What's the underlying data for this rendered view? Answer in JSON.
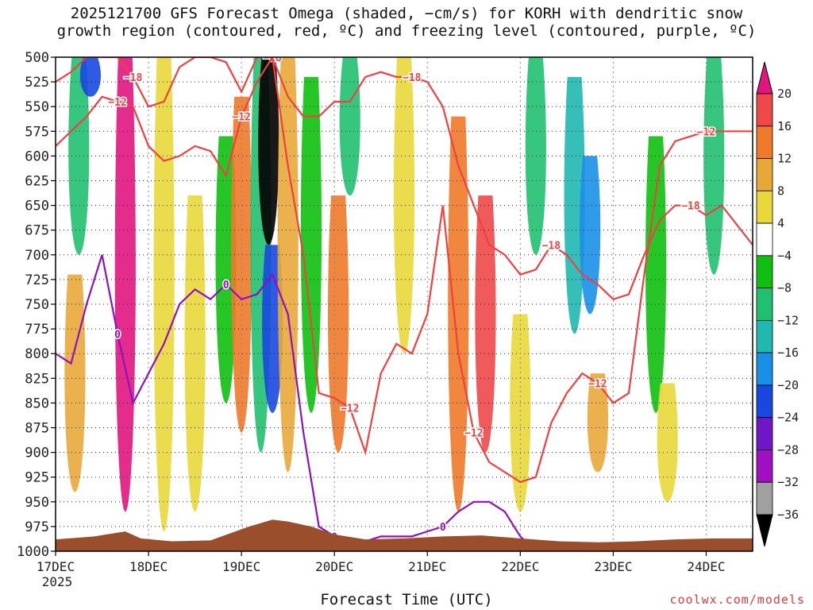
{
  "title_line1": "2025121700 GFS Forecast Omega (shaded, −cm/s) for KORH with dendritic snow",
  "title_line2": "growth region (contoured, red, ºC) and freezing level (contoured, purple, ºC)",
  "credit": "coolwx.com/models",
  "chart_data": {
    "type": "heatmap",
    "title": "2025121700 GFS Forecast Omega (shaded, −cm/s) for KORH with dendritic snow growth region (contoured, red, ºC) and freezing level (contoured, purple, ºC)",
    "xlabel": "Forecast Time (UTC)",
    "ylabel": "Pressure (hPa)",
    "x_ticks": [
      "17DEC",
      "18DEC",
      "19DEC",
      "20DEC",
      "21DEC",
      "22DEC",
      "23DEC",
      "24DEC"
    ],
    "x_year_label": "2025",
    "xlim_hours": [
      0,
      180
    ],
    "y_ticks": [
      500,
      525,
      550,
      575,
      600,
      625,
      650,
      675,
      700,
      725,
      750,
      775,
      800,
      825,
      850,
      875,
      900,
      925,
      950,
      975,
      1000
    ],
    "ylim": [
      500,
      1000
    ],
    "colorbar": {
      "ticks": [
        "20",
        "16",
        "12",
        "8",
        "4",
        "−4",
        "−8",
        "−12",
        "−16",
        "−20",
        "−24",
        "−28",
        "−32",
        "−36"
      ],
      "bins": [
        {
          "range": ">20",
          "color": "#e0157e"
        },
        {
          "range": "16 to 20",
          "color": "#f04848"
        },
        {
          "range": "12 to 16",
          "color": "#f07a2a"
        },
        {
          "range": "8 to 12",
          "color": "#e8a838"
        },
        {
          "range": "4 to 8",
          "color": "#e8d838"
        },
        {
          "range": "-4 to 4",
          "color": "#ffffff"
        },
        {
          "range": "-8 to -4",
          "color": "#10c010"
        },
        {
          "range": "-12 to -8",
          "color": "#20c070"
        },
        {
          "range": "-16 to -12",
          "color": "#20b8b0"
        },
        {
          "range": "-20 to -16",
          "color": "#1890e8"
        },
        {
          "range": "-24 to -20",
          "color": "#1848e0"
        },
        {
          "range": "-28 to -24",
          "color": "#7018c8"
        },
        {
          "range": "-32 to -28",
          "color": "#a010c0"
        },
        {
          "range": "-36 to -32",
          "color": "#a0a0a0"
        },
        {
          "range": "<-36",
          "color": "#000000"
        }
      ]
    },
    "omega_features": [
      {
        "hour": 6,
        "p_top": 500,
        "p_bot": 700,
        "bin": "-12 to -8"
      },
      {
        "hour": 9,
        "p_top": 500,
        "p_bot": 540,
        "bin": "-24 to -20"
      },
      {
        "hour": 5,
        "p_top": 720,
        "p_bot": 940,
        "bin": "8 to 12"
      },
      {
        "hour": 18,
        "p_top": 500,
        "p_bot": 960,
        "bin": ">20"
      },
      {
        "hour": 28,
        "p_top": 500,
        "p_bot": 980,
        "bin": "4 to 8"
      },
      {
        "hour": 36,
        "p_top": 640,
        "p_bot": 960,
        "bin": "4 to 8"
      },
      {
        "hour": 44,
        "p_top": 580,
        "p_bot": 850,
        "bin": "-8 to -4"
      },
      {
        "hour": 48,
        "p_top": 540,
        "p_bot": 880,
        "bin": "12 to 16"
      },
      {
        "hour": 53,
        "p_top": 500,
        "p_bot": 900,
        "bin": "-12 to -8"
      },
      {
        "hour": 55,
        "p_top": 500,
        "p_bot": 690,
        "bin": "<-36"
      },
      {
        "hour": 56,
        "p_top": 690,
        "p_bot": 860,
        "bin": "-24 to -20"
      },
      {
        "hour": 60,
        "p_top": 500,
        "p_bot": 920,
        "bin": "8 to 12"
      },
      {
        "hour": 66,
        "p_top": 520,
        "p_bot": 860,
        "bin": "-8 to -4"
      },
      {
        "hour": 73,
        "p_top": 640,
        "p_bot": 900,
        "bin": "12 to 16"
      },
      {
        "hour": 76,
        "p_top": 500,
        "p_bot": 640,
        "bin": "-12 to -8"
      },
      {
        "hour": 90,
        "p_top": 500,
        "p_bot": 800,
        "bin": "4 to 8"
      },
      {
        "hour": 104,
        "p_top": 560,
        "p_bot": 960,
        "bin": "12 to 16"
      },
      {
        "hour": 111,
        "p_top": 640,
        "p_bot": 900,
        "bin": "16 to 20"
      },
      {
        "hour": 120,
        "p_top": 760,
        "p_bot": 960,
        "bin": "4 to 8"
      },
      {
        "hour": 124,
        "p_top": 500,
        "p_bot": 700,
        "bin": "-12 to -8"
      },
      {
        "hour": 134,
        "p_top": 520,
        "p_bot": 780,
        "bin": "-16 to -12"
      },
      {
        "hour": 138,
        "p_top": 600,
        "p_bot": 760,
        "bin": "-20 to -16"
      },
      {
        "hour": 140,
        "p_top": 820,
        "p_bot": 920,
        "bin": "8 to 12"
      },
      {
        "hour": 155,
        "p_top": 580,
        "p_bot": 860,
        "bin": "-8 to -4"
      },
      {
        "hour": 170,
        "p_top": 500,
        "p_bot": 720,
        "bin": "-12 to -8"
      },
      {
        "hour": 158,
        "p_top": 830,
        "p_bot": 950,
        "bin": "4 to 8"
      }
    ],
    "contours": [
      {
        "name": "dgz-upper",
        "color": "#f04040",
        "labels": [
          "−18",
          "−18",
          "−18",
          "−18",
          "−18"
        ],
        "hours": [
          0,
          4,
          8,
          12,
          16,
          20,
          24,
          28,
          32,
          36,
          40,
          44,
          48,
          52,
          56,
          60,
          64,
          68,
          72,
          76,
          80,
          84,
          88,
          92,
          96,
          100,
          104,
          108,
          112,
          116,
          120,
          124,
          128,
          132,
          136,
          140,
          144,
          148,
          152,
          156,
          160,
          164,
          168,
          172,
          176,
          180
        ],
        "p": [
          525,
          515,
          500,
          500,
          500,
          520,
          550,
          545,
          510,
          500,
          500,
          505,
          535,
          500,
          500,
          540,
          560,
          560,
          545,
          545,
          520,
          515,
          520,
          520,
          525,
          550,
          610,
          650,
          690,
          700,
          720,
          715,
          690,
          700,
          720,
          730,
          745,
          740,
          700,
          665,
          650,
          650,
          660,
          650,
          670,
          690
        ]
      },
      {
        "name": "dgz-lower",
        "color": "#f04040",
        "labels": [
          "−12",
          "−12",
          "−12",
          "−12",
          "−12",
          "−12"
        ],
        "hours": [
          0,
          4,
          8,
          12,
          16,
          20,
          24,
          28,
          32,
          36,
          40,
          44,
          48,
          52,
          56,
          60,
          64,
          68,
          72,
          76,
          80,
          84,
          88,
          92,
          96,
          100,
          104,
          108,
          112,
          116,
          120,
          124,
          128,
          132,
          136,
          140,
          144,
          148,
          152,
          156,
          160,
          164,
          168,
          172,
          176,
          180
        ],
        "p": [
          590,
          575,
          560,
          540,
          545,
          550,
          590,
          605,
          600,
          590,
          595,
          620,
          560,
          525,
          500,
          610,
          700,
          840,
          845,
          855,
          900,
          820,
          790,
          800,
          760,
          650,
          800,
          880,
          910,
          920,
          930,
          925,
          870,
          840,
          820,
          830,
          850,
          840,
          720,
          610,
          585,
          580,
          575,
          575,
          575,
          575
        ]
      },
      {
        "name": "freezing-level",
        "color": "#9010c0",
        "labels": [
          "0",
          "0",
          "0",
          "0",
          "0"
        ],
        "hours": [
          0,
          4,
          8,
          12,
          16,
          20,
          24,
          28,
          32,
          36,
          40,
          44,
          48,
          52,
          56,
          60,
          64,
          68,
          72,
          76,
          80,
          84,
          88,
          92,
          96,
          100,
          104,
          108,
          112,
          116,
          120,
          124,
          128,
          132,
          136,
          140
        ],
        "p": [
          800,
          810,
          750,
          700,
          780,
          850,
          820,
          790,
          750,
          735,
          745,
          730,
          745,
          740,
          720,
          760,
          880,
          975,
          985,
          990,
          990,
          985,
          985,
          985,
          980,
          975,
          960,
          950,
          950,
          960,
          985,
          1000,
          1000,
          1000,
          1000,
          1000
        ]
      }
    ],
    "terrain": {
      "color": "#9a4e2c",
      "hours": [
        0,
        10,
        18,
        22,
        30,
        40,
        50,
        56,
        60,
        66,
        72,
        80,
        90,
        100,
        110,
        120,
        130,
        140,
        150,
        160,
        170,
        180
      ],
      "surface_p": [
        988,
        985,
        980,
        987,
        990,
        989,
        975,
        968,
        970,
        975,
        983,
        988,
        987,
        985,
        984,
        987,
        990,
        991,
        990,
        988,
        987,
        987
      ]
    }
  }
}
